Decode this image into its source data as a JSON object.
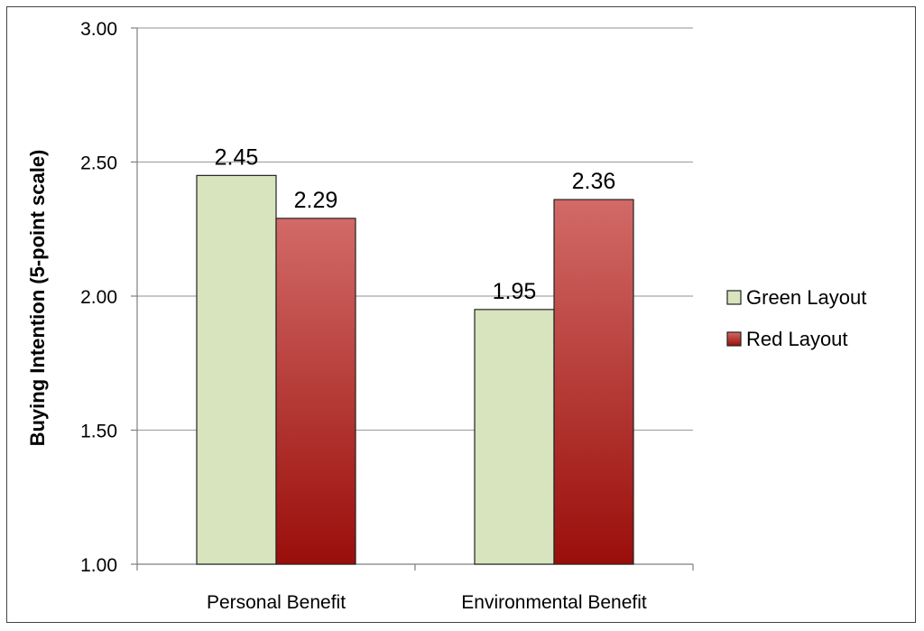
{
  "chart_data": {
    "type": "bar",
    "title": "",
    "xlabel": "",
    "ylabel": "Buying Intention (5-point scale)",
    "categories": [
      "Personal Benefit",
      "Environmental Benefit"
    ],
    "series": [
      {
        "name": "Green Layout",
        "values": [
          2.45,
          1.95
        ],
        "color": "#d7e4bd"
      },
      {
        "name": "Red Layout",
        "values": [
          2.29,
          2.36
        ],
        "color": "#a31a15"
      }
    ],
    "data_labels": [
      [
        "2.45",
        "1.95"
      ],
      [
        "2.29",
        "2.36"
      ]
    ],
    "ylim": [
      1.0,
      3.0
    ],
    "yticks": [
      1.0,
      1.5,
      2.0,
      2.5,
      3.0
    ],
    "ytick_labels": [
      "1.00",
      "1.50",
      "2.00",
      "2.50",
      "3.00"
    ],
    "grid": true,
    "legend_position": "right"
  }
}
